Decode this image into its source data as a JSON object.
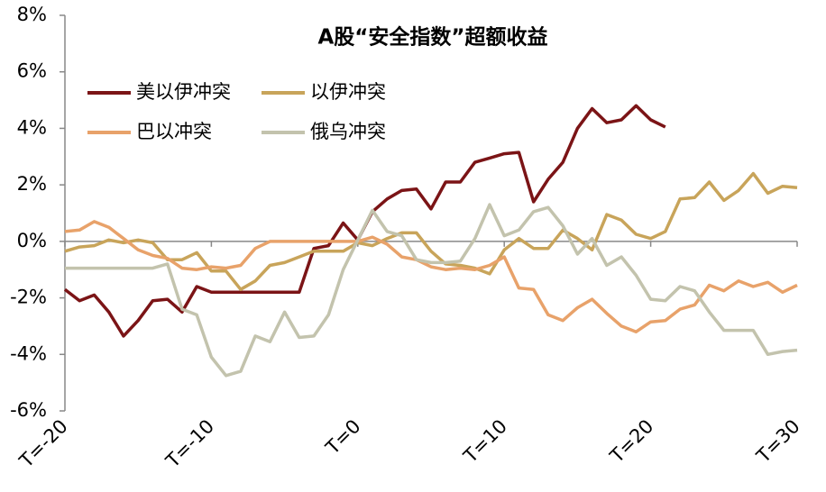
{
  "chart_data": {
    "type": "line",
    "title": "A股“安全指数”超额收益",
    "x": [
      -20,
      -19,
      -18,
      -17,
      -16,
      -15,
      -14,
      -13,
      -12,
      -11,
      -10,
      -9,
      -8,
      -7,
      -6,
      -5,
      -4,
      -3,
      -2,
      -1,
      0,
      1,
      2,
      3,
      4,
      5,
      6,
      7,
      8,
      9,
      10,
      11,
      12,
      13,
      14,
      15,
      16,
      17,
      18,
      19,
      20,
      21,
      22,
      23,
      24,
      25,
      26,
      27,
      28,
      29,
      30
    ],
    "series": [
      {
        "name": "美以伊冲突",
        "color": "#7b1416",
        "values": [
          -1.7,
          -2.1,
          -1.9,
          -2.5,
          -3.35,
          -2.8,
          -2.1,
          -2.05,
          -2.5,
          -1.6,
          -1.8,
          -1.8,
          -1.8,
          -1.8,
          -1.8,
          -1.8,
          -1.8,
          -0.25,
          -0.15,
          0.65,
          0.05,
          1.05,
          1.5,
          1.8,
          1.85,
          1.15,
          2.1,
          2.1,
          2.8,
          2.95,
          3.1,
          3.15,
          1.4,
          2.2,
          2.8,
          4.0,
          4.7,
          4.2,
          4.3,
          4.8,
          4.3,
          4.05,
          null,
          null,
          null,
          null,
          null,
          null,
          null,
          null,
          null
        ]
      },
      {
        "name": "以伊冲突",
        "color": "#c8a45a",
        "values": [
          -0.35,
          -0.2,
          -0.15,
          0.05,
          -0.05,
          0.05,
          -0.05,
          -0.65,
          -0.65,
          -0.4,
          -1.05,
          -1.05,
          -1.7,
          -1.4,
          -0.85,
          -0.75,
          -0.55,
          -0.35,
          -0.35,
          -0.35,
          -0.05,
          -0.15,
          0.1,
          0.3,
          0.3,
          -0.35,
          -0.8,
          -0.85,
          -0.95,
          -1.15,
          -0.3,
          0.1,
          -0.25,
          -0.25,
          0.4,
          0.1,
          -0.3,
          0.95,
          0.75,
          0.25,
          0.1,
          0.35,
          1.5,
          1.55,
          2.1,
          1.45,
          1.8,
          2.4,
          1.7,
          1.95,
          1.9
        ]
      },
      {
        "name": "巴以冲突",
        "color": "#e8a26a",
        "values": [
          0.35,
          0.4,
          0.7,
          0.5,
          0.1,
          -0.3,
          -0.5,
          -0.6,
          -0.95,
          -1.0,
          -0.9,
          -0.95,
          -0.85,
          -0.25,
          0,
          0,
          0,
          0,
          0,
          0,
          0,
          0.15,
          -0.1,
          -0.55,
          -0.65,
          -0.9,
          -1.0,
          -0.95,
          -1.0,
          -0.85,
          -0.55,
          -1.65,
          -1.7,
          -2.6,
          -2.8,
          -2.35,
          -2.05,
          -2.55,
          -3.0,
          -3.2,
          -2.85,
          -2.8,
          -2.4,
          -2.25,
          -1.55,
          -1.75,
          -1.4,
          -1.6,
          -1.45,
          -1.8,
          -1.55
        ]
      },
      {
        "name": "俄乌冲突",
        "color": "#c3c3ad",
        "values": [
          -0.95,
          -0.95,
          -0.95,
          -0.95,
          -0.95,
          -0.95,
          -0.95,
          -0.8,
          -2.4,
          -2.6,
          -4.1,
          -4.75,
          -4.6,
          -3.35,
          -3.55,
          -2.5,
          -3.4,
          -3.35,
          -2.6,
          -1.0,
          0.05,
          1.1,
          0.35,
          0.2,
          -0.65,
          -0.75,
          -0.75,
          -0.7,
          0.1,
          1.3,
          0.2,
          0.4,
          1.05,
          1.2,
          0.55,
          -0.45,
          0.1,
          -0.85,
          -0.55,
          -1.2,
          -2.05,
          -2.1,
          -1.6,
          -1.75,
          -2.5,
          -3.15,
          -3.15,
          -3.15,
          -4.0,
          -3.9,
          -3.85
        ]
      }
    ],
    "xlim": [
      -20,
      30
    ],
    "xticks": [
      {
        "value": -20,
        "label": "T=-20"
      },
      {
        "value": -10,
        "label": "T=-10"
      },
      {
        "value": 0,
        "label": "T=0"
      },
      {
        "value": 10,
        "label": "T=10"
      },
      {
        "value": 20,
        "label": "T=20"
      },
      {
        "value": 30,
        "label": "T=30"
      }
    ],
    "ylim": [
      -6,
      8
    ],
    "yticks": [
      {
        "value": -6,
        "label": "-6%"
      },
      {
        "value": -4,
        "label": "-4%"
      },
      {
        "value": -2,
        "label": "-2%"
      },
      {
        "value": 0,
        "label": "0%"
      },
      {
        "value": 2,
        "label": "2%"
      },
      {
        "value": 4,
        "label": "4%"
      },
      {
        "value": 6,
        "label": "6%"
      },
      {
        "value": 8,
        "label": "8%"
      }
    ],
    "legend": "upper left"
  }
}
